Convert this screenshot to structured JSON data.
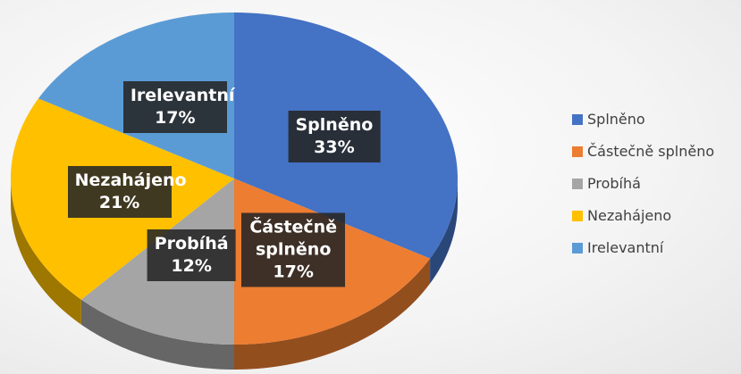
{
  "chart_data": {
    "type": "pie",
    "categories": [
      "Splněno",
      "Částečně splněno",
      "Probíhá",
      "Nezahájeno",
      "Irelevantní"
    ],
    "values": [
      33,
      17,
      12,
      21,
      17
    ],
    "value_labels": [
      "33%",
      "17%",
      "12%",
      "21%",
      "17%"
    ],
    "colors": [
      "#4472c4",
      "#ed7d31",
      "#a5a5a5",
      "#ffc000",
      "#5b9bd5"
    ],
    "legend": "right"
  }
}
